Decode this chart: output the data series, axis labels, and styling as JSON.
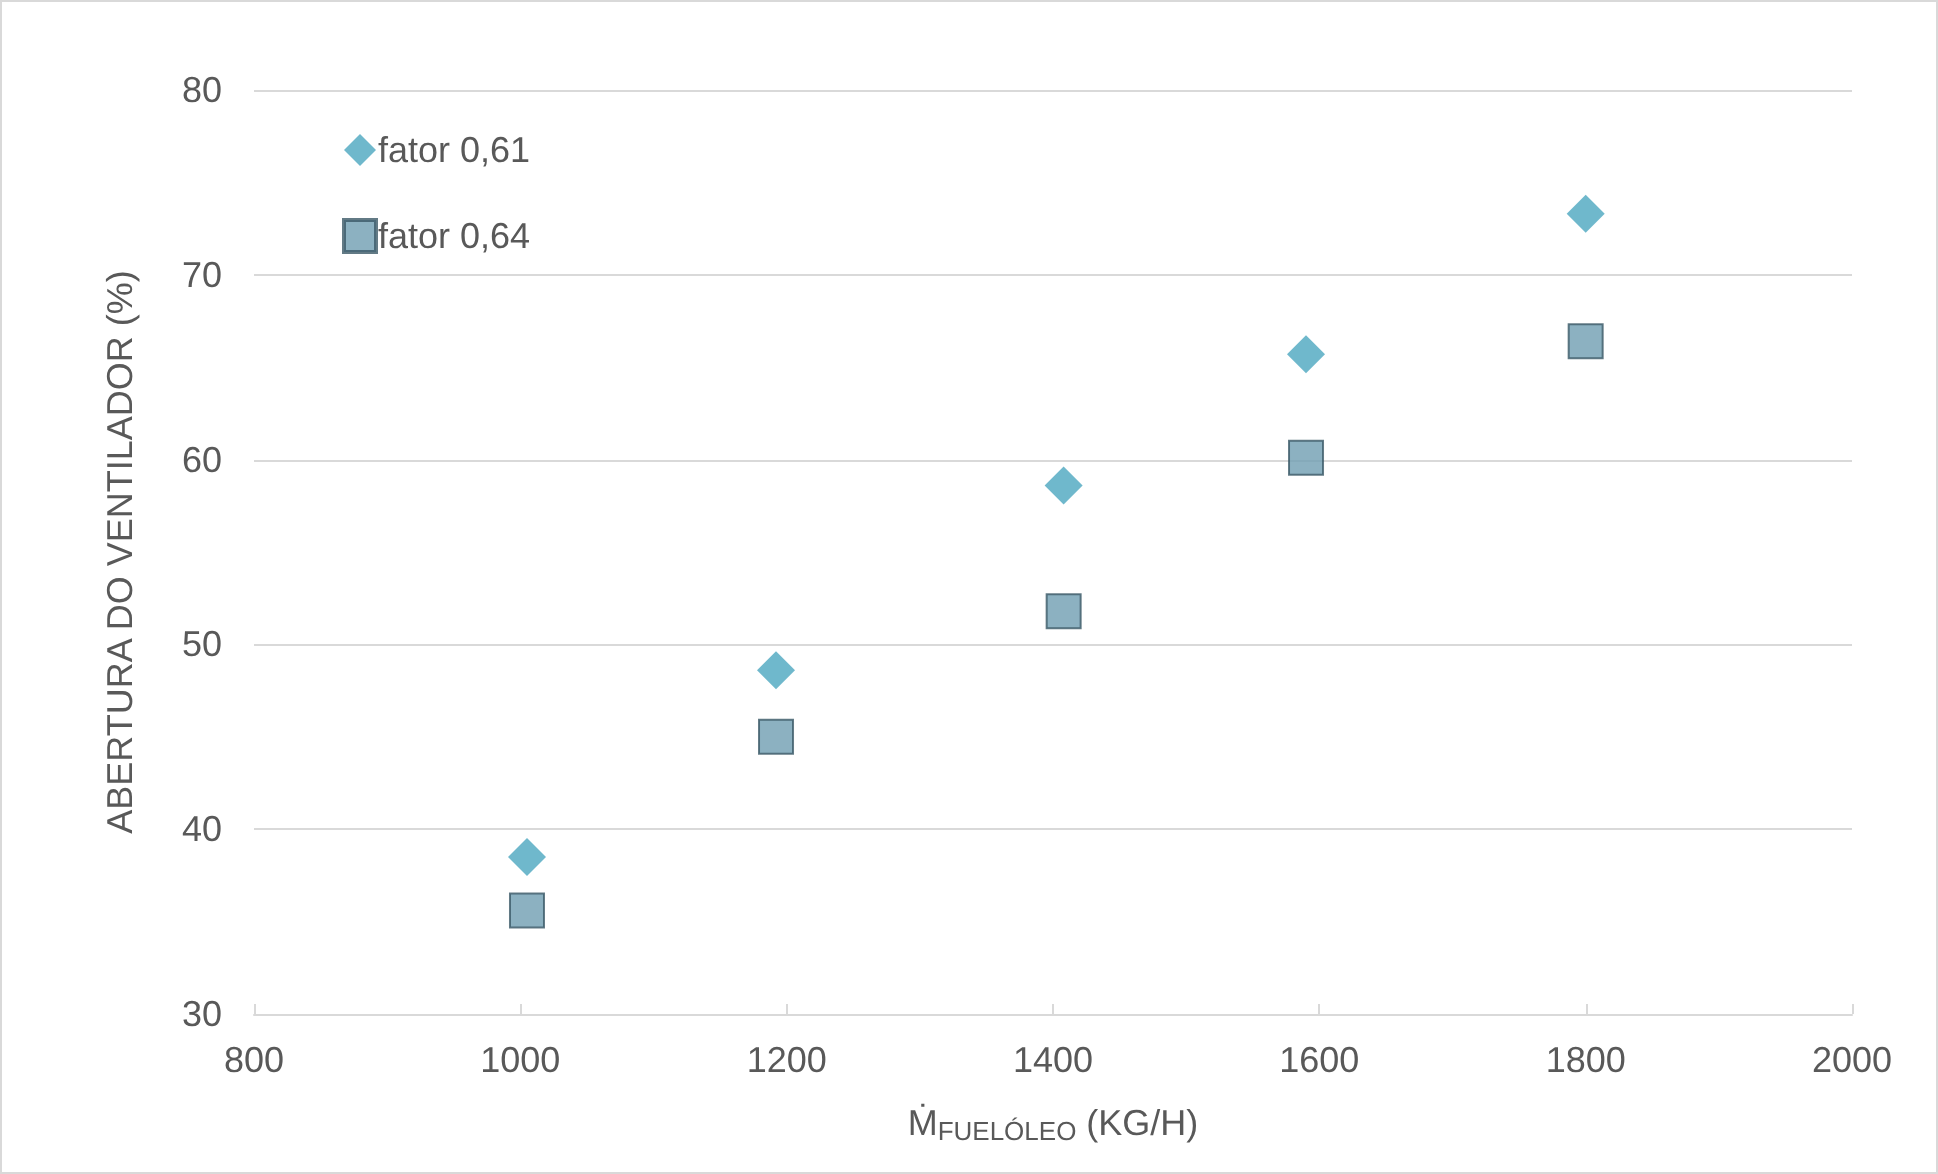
{
  "chart_data": {
    "type": "scatter",
    "xlabel": "Ṁ$_{FUELÓLEO}$ (KG/H)",
    "ylabel": "ABERTURA DO VENTILADOR (%)",
    "x": [
      1005,
      1192,
      1408,
      1590,
      1800
    ],
    "series": [
      {
        "name": "fator 0,61",
        "color": "#4ba6bf",
        "marker": "diamond",
        "values": [
          38.5,
          48.6,
          58.6,
          65.7,
          73.3
        ]
      },
      {
        "name": "fator 0,64",
        "color": "#6f9db2",
        "marker": "square",
        "values": [
          35.6,
          45.0,
          51.8,
          60.1,
          66.4
        ]
      }
    ],
    "xlim": [
      800,
      2000
    ],
    "xticks": [
      800,
      1000,
      1200,
      1400,
      1600,
      1800,
      2000
    ],
    "ylim": [
      30,
      80
    ],
    "yticks": [
      30,
      40,
      50,
      60,
      70,
      80
    ],
    "grid": "y",
    "legend": "top left"
  }
}
